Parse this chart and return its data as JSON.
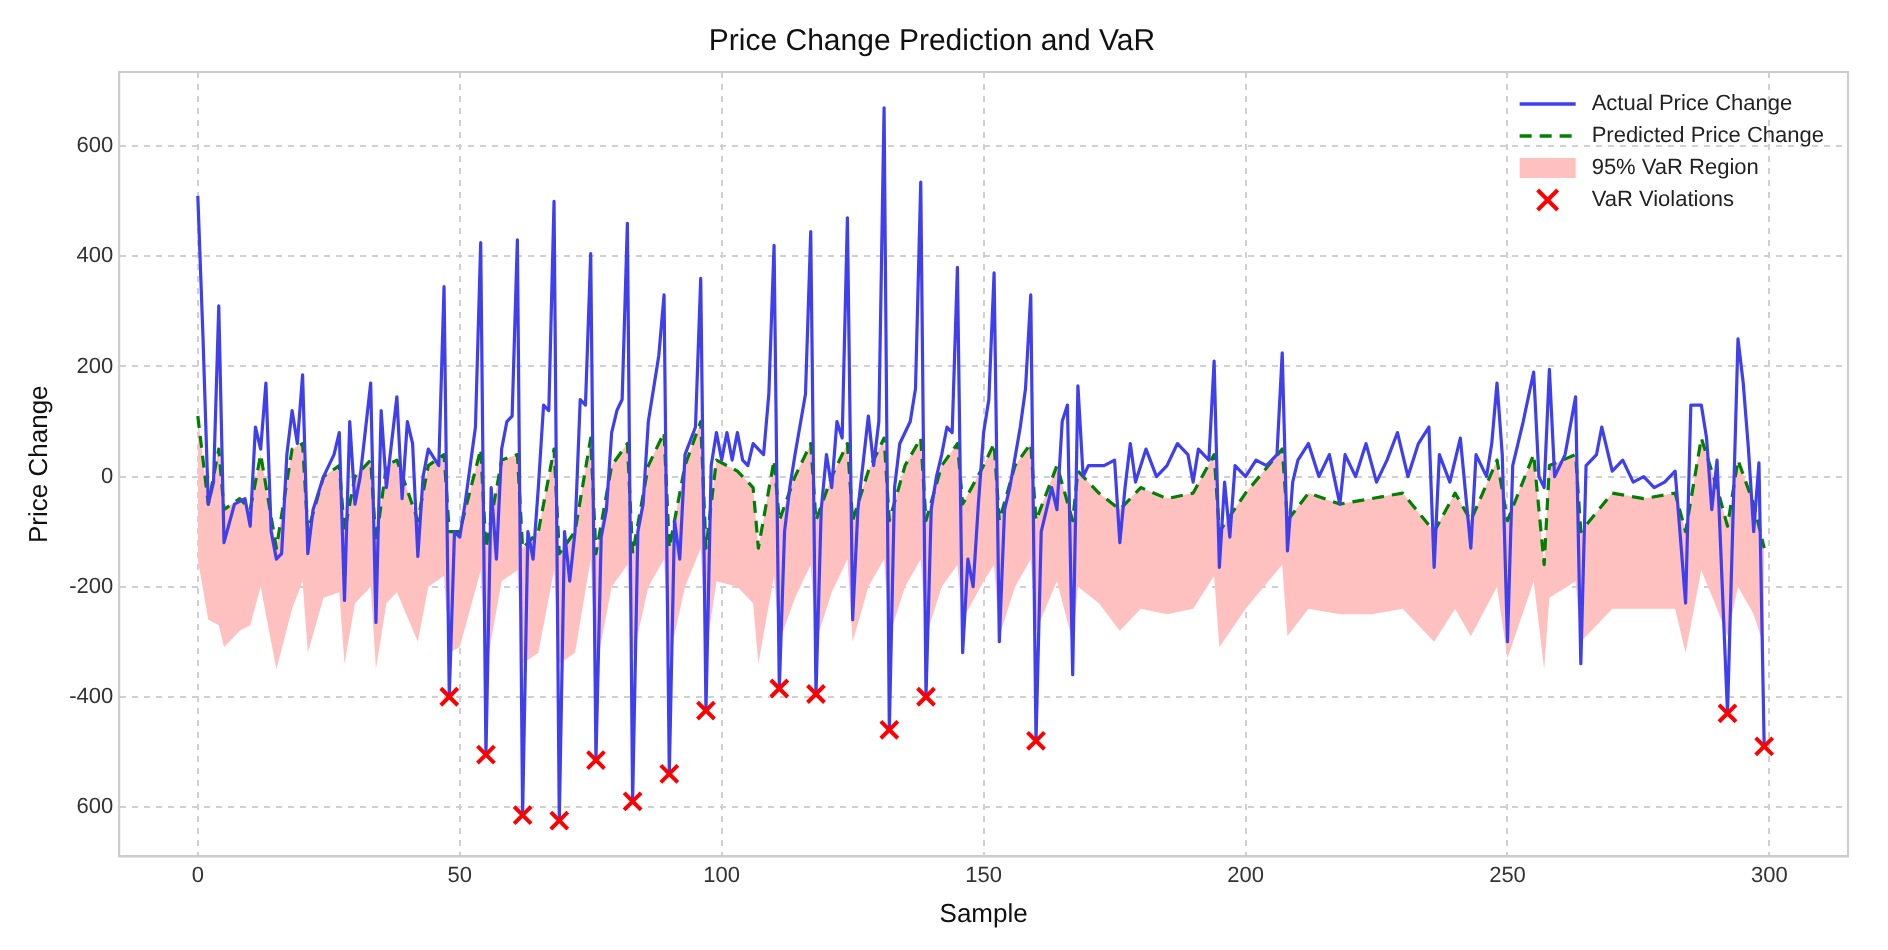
{
  "chart_data": {
    "type": "line",
    "title": "Price Change Prediction and VaR",
    "xlabel": "Sample",
    "ylabel": "Price Change",
    "xlim": [
      -15,
      315
    ],
    "xticks": [
      0,
      50,
      100,
      150,
      200,
      250,
      300
    ],
    "ylim": [
      -690,
      735
    ],
    "yticks": [
      {
        "value": -600,
        "label": "600"
      },
      -400,
      -200,
      0,
      200,
      400,
      600
    ],
    "grid": true,
    "legend": "top right",
    "series": [
      {
        "name": "Actual Price Change",
        "type": "line",
        "line_style": "solid",
        "marker": "none",
        "color": "#3f3fee",
        "x": [
          0,
          1,
          2,
          3,
          4,
          5,
          7,
          9,
          10,
          11,
          12,
          13,
          14,
          15,
          16,
          17,
          18,
          19,
          20,
          21,
          22,
          24,
          26,
          27,
          28,
          29,
          30,
          31,
          33,
          34,
          35,
          36,
          38,
          39,
          40,
          41,
          42,
          43,
          44,
          46,
          47,
          48,
          49,
          50,
          51,
          53,
          54,
          55,
          56,
          57,
          58,
          59,
          60,
          61,
          62,
          63,
          64,
          65,
          66,
          67,
          68,
          69,
          70,
          71,
          72,
          73,
          74,
          75,
          76,
          77,
          78,
          79,
          80,
          81,
          82,
          83,
          84,
          85,
          86,
          88,
          89,
          90,
          91,
          92,
          93,
          95,
          96,
          97,
          98,
          99,
          100,
          101,
          102,
          103,
          104,
          105,
          106,
          108,
          109,
          110,
          111,
          112,
          113,
          114,
          116,
          117,
          118,
          119,
          120,
          121,
          122,
          123,
          124,
          125,
          126,
          128,
          129,
          130,
          131,
          132,
          133,
          134,
          136,
          137,
          138,
          139,
          140,
          141,
          142,
          143,
          144,
          145,
          146,
          147,
          148,
          149,
          150,
          151,
          152,
          153,
          154,
          155,
          157,
          158,
          159,
          160,
          161,
          162,
          163,
          164,
          165,
          166,
          167,
          168,
          169,
          170,
          173,
          175,
          176,
          177,
          178,
          179,
          180,
          181,
          183,
          185,
          187,
          189,
          190,
          191,
          193,
          194,
          195,
          196,
          197,
          198,
          200,
          202,
          204,
          206,
          207,
          208,
          209,
          210,
          212,
          214,
          216,
          218,
          219,
          221,
          223,
          225,
          227,
          229,
          231,
          233,
          235,
          236,
          237,
          239,
          241,
          243,
          244,
          246,
          247,
          248,
          249,
          250,
          251,
          253,
          255,
          256,
          257,
          258,
          259,
          261,
          263,
          264,
          265,
          267,
          268,
          270,
          272,
          274,
          276,
          278,
          280,
          282,
          284,
          285,
          287,
          288,
          289,
          290,
          292,
          294,
          295,
          296,
          297,
          298,
          299
        ],
        "values": [
          510,
          250,
          -50,
          -10,
          310,
          -120,
          -50,
          -40,
          -90,
          90,
          50,
          170,
          -100,
          -150,
          -140,
          40,
          120,
          60,
          185,
          -140,
          -60,
          0,
          40,
          80,
          -225,
          100,
          -50,
          0,
          170,
          -265,
          120,
          -20,
          145,
          -40,
          100,
          60,
          -145,
          0,
          50,
          20,
          345,
          -400,
          -100,
          -110,
          -50,
          90,
          425,
          -505,
          -20,
          -150,
          50,
          100,
          110,
          430,
          -615,
          -100,
          -150,
          -20,
          130,
          120,
          500,
          -625,
          -100,
          -190,
          -100,
          140,
          130,
          405,
          -515,
          -110,
          -60,
          80,
          120,
          140,
          460,
          -590,
          -100,
          -50,
          100,
          220,
          330,
          -540,
          -80,
          -150,
          40,
          90,
          360,
          -425,
          20,
          80,
          30,
          80,
          30,
          80,
          30,
          20,
          60,
          40,
          150,
          420,
          -385,
          -100,
          -20,
          40,
          150,
          445,
          -395,
          -60,
          40,
          -20,
          100,
          70,
          470,
          -260,
          -60,
          110,
          20,
          100,
          670,
          -460,
          -20,
          60,
          100,
          160,
          535,
          -400,
          -60,
          0,
          40,
          90,
          80,
          380,
          -320,
          -150,
          -200,
          -50,
          80,
          140,
          370,
          -300,
          -60,
          -20,
          90,
          160,
          330,
          -480,
          -100,
          -60,
          -20,
          -60,
          100,
          130,
          -360,
          165,
          0,
          20,
          20,
          30,
          -120,
          -20,
          60,
          -10,
          20,
          50,
          0,
          20,
          60,
          40,
          -10,
          50,
          30,
          210,
          -165,
          -10,
          -110,
          20,
          0,
          30,
          20,
          40,
          225,
          -135,
          -10,
          30,
          60,
          0,
          40,
          -50,
          40,
          0,
          60,
          -10,
          30,
          80,
          0,
          60,
          90,
          -165,
          40,
          -10,
          70,
          -130,
          40,
          0,
          60,
          170,
          40,
          -300,
          20,
          100,
          190,
          0,
          -20,
          195,
          0,
          40,
          145,
          -340,
          20,
          40,
          90,
          10,
          30,
          -10,
          0,
          -20,
          -10,
          10,
          -230,
          130,
          130,
          70,
          -60,
          30,
          -430,
          250,
          170,
          50,
          -100,
          25,
          -490
        ]
      },
      {
        "name": "Predicted Price Change",
        "type": "line",
        "line_style": "dashed",
        "marker": "none",
        "color": "#008000",
        "x": [
          0,
          2,
          4,
          5,
          8,
          10,
          12,
          15,
          18,
          20,
          21,
          24,
          27,
          28,
          30,
          33,
          34,
          36,
          38,
          42,
          44,
          47,
          48,
          50,
          54,
          55,
          58,
          61,
          62,
          65,
          68,
          69,
          72,
          75,
          76,
          79,
          82,
          83,
          86,
          89,
          90,
          93,
          96,
          97,
          99,
          103,
          106,
          107,
          110,
          111,
          114,
          117,
          118,
          121,
          124,
          125,
          128,
          131,
          132,
          135,
          138,
          139,
          142,
          145,
          146,
          150,
          152,
          153,
          156,
          159,
          160,
          164,
          167,
          168,
          172,
          176,
          180,
          185,
          190,
          194,
          195,
          200,
          207,
          208,
          212,
          218,
          224,
          230,
          236,
          240,
          243,
          248,
          250,
          255,
          257,
          258,
          263,
          264,
          270,
          276,
          282,
          284,
          287,
          290,
          292,
          294,
          297,
          299
        ],
        "values": [
          110,
          -50,
          50,
          -60,
          -40,
          -60,
          40,
          -130,
          50,
          60,
          -100,
          0,
          20,
          -100,
          0,
          30,
          -120,
          20,
          30,
          -80,
          20,
          40,
          -100,
          -100,
          50,
          -130,
          30,
          40,
          -130,
          -100,
          50,
          -140,
          -100,
          70,
          -140,
          20,
          60,
          -140,
          20,
          80,
          -130,
          20,
          100,
          -130,
          30,
          10,
          -20,
          -130,
          30,
          -80,
          0,
          60,
          -80,
          0,
          60,
          -80,
          10,
          70,
          -80,
          20,
          70,
          -80,
          20,
          60,
          -50,
          20,
          60,
          -80,
          20,
          60,
          -80,
          20,
          -80,
          10,
          -30,
          -60,
          -20,
          -40,
          -30,
          40,
          -100,
          -30,
          50,
          -80,
          -30,
          -50,
          -40,
          -30,
          -100,
          -30,
          -80,
          30,
          -80,
          40,
          -160,
          20,
          40,
          -100,
          -30,
          -40,
          -30,
          -100,
          70,
          -20,
          -90,
          30,
          -50,
          -130
        ]
      },
      {
        "name": "95% VaR Region",
        "type": "line",
        "color": "#ffc0c0",
        "values": [
          null,
          null,
          null,
          null,
          null,
          null,
          null,
          null,
          null,
          null,
          null,
          null,
          null,
          null,
          null,
          null,
          null,
          null,
          null,
          null,
          null,
          null,
          null,
          null,
          null,
          null,
          null,
          null,
          null,
          null,
          null,
          null,
          null,
          null,
          null,
          null,
          null,
          null,
          null,
          null,
          null,
          null,
          null,
          null,
          null,
          null,
          null,
          null,
          null,
          null,
          null,
          null,
          null,
          null,
          null,
          null,
          null,
          null,
          null,
          null,
          null,
          null,
          null,
          null,
          null,
          null,
          null,
          null,
          null,
          null,
          null,
          null,
          null,
          null,
          null,
          null,
          null,
          null,
          null,
          null,
          null,
          null,
          null,
          null,
          null,
          null,
          null,
          null,
          null,
          null,
          null,
          null,
          null,
          null,
          null,
          null,
          null,
          null,
          null,
          null,
          null,
          null,
          null,
          null,
          null,
          null,
          null,
          null
        ],
        "x": [
          0,
          2,
          4,
          5,
          8,
          10,
          12,
          15,
          18,
          20,
          21,
          24,
          27,
          28,
          30,
          33,
          34,
          36,
          38,
          42,
          44,
          47,
          48,
          50,
          54,
          55,
          58,
          61,
          62,
          65,
          68,
          69,
          72,
          75,
          76,
          79,
          82,
          83,
          86,
          89,
          90,
          93,
          96,
          97,
          99,
          103,
          106,
          107,
          110,
          111,
          114,
          117,
          118,
          121,
          124,
          125,
          128,
          131,
          132,
          135,
          138,
          139,
          142,
          145,
          146,
          150,
          152,
          153,
          156,
          159,
          160,
          164,
          167,
          168,
          172,
          176,
          180,
          185,
          190,
          194,
          195,
          200,
          207,
          208,
          212,
          218,
          224,
          230,
          236,
          240,
          243,
          248,
          250,
          255,
          257,
          258,
          263,
          264,
          270,
          276,
          282,
          284,
          287,
          290,
          292,
          294,
          297,
          299
        ],
        "lower": [
          -150,
          -260,
          -270,
          -310,
          -280,
          -270,
          -200,
          -350,
          -240,
          -190,
          -320,
          -220,
          -210,
          -340,
          -230,
          -200,
          -350,
          -230,
          -210,
          -300,
          -200,
          -180,
          -320,
          -310,
          -170,
          -350,
          -190,
          -170,
          -340,
          -320,
          -170,
          -340,
          -320,
          -150,
          -350,
          -200,
          -160,
          -330,
          -200,
          -150,
          -330,
          -200,
          -130,
          -320,
          -190,
          -200,
          -230,
          -340,
          -180,
          -300,
          -220,
          -160,
          -300,
          -210,
          -150,
          -300,
          -200,
          -150,
          -290,
          -200,
          -150,
          -290,
          -200,
          -160,
          -260,
          -190,
          -160,
          -290,
          -200,
          -150,
          -280,
          -190,
          -300,
          -200,
          -230,
          -280,
          -240,
          -250,
          -240,
          -180,
          -310,
          -240,
          -160,
          -290,
          -240,
          -250,
          -250,
          -240,
          -300,
          -240,
          -290,
          -200,
          -330,
          -190,
          -350,
          -220,
          -190,
          -300,
          -240,
          -240,
          -240,
          -320,
          -170,
          -240,
          -290,
          -200,
          -250,
          -310
        ],
        "upper": [
          110,
          -50,
          50,
          -60,
          -40,
          -60,
          40,
          -130,
          50,
          60,
          -100,
          0,
          20,
          -100,
          0,
          30,
          -120,
          20,
          30,
          -80,
          20,
          40,
          -100,
          -100,
          50,
          -130,
          30,
          40,
          -130,
          -100,
          50,
          -140,
          -100,
          70,
          -140,
          20,
          60,
          -140,
          20,
          80,
          -130,
          20,
          100,
          -130,
          30,
          10,
          -20,
          -130,
          30,
          -80,
          0,
          60,
          -80,
          0,
          60,
          -80,
          10,
          70,
          -80,
          20,
          70,
          -80,
          20,
          60,
          -50,
          20,
          60,
          -80,
          20,
          60,
          -80,
          20,
          -80,
          10,
          -30,
          -60,
          -20,
          -40,
          -30,
          40,
          -100,
          -30,
          50,
          -80,
          -30,
          -50,
          -40,
          -30,
          -100,
          -30,
          -80,
          30,
          -80,
          40,
          -160,
          20,
          40,
          -100,
          -30,
          -40,
          -30,
          -100,
          70,
          -20,
          -90,
          30,
          -50,
          -130
        ]
      },
      {
        "name": "VaR Violations",
        "type": "scatter",
        "marker": "cross",
        "color": "#ff0000",
        "x": [
          48,
          55,
          62,
          69,
          76,
          83,
          90,
          97,
          111,
          118,
          132,
          139,
          160,
          292,
          299
        ],
        "values": [
          -400,
          -505,
          -615,
          -625,
          -515,
          -590,
          -540,
          -425,
          -385,
          -395,
          -460,
          -400,
          -480,
          -430,
          -490
        ]
      }
    ]
  }
}
